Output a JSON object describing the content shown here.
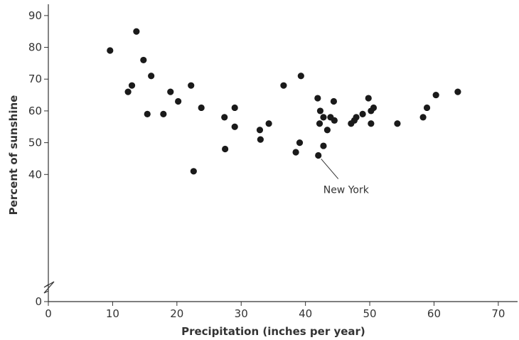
{
  "chart_data": {
    "type": "scatter",
    "xlabel": "Precipitation (inches per year)",
    "ylabel": "Percent of sunshine",
    "xlim": [
      0,
      73
    ],
    "ylim": [
      0,
      94
    ],
    "x_ticks": [
      0,
      10,
      20,
      30,
      40,
      50,
      60,
      70
    ],
    "y_ticks": [
      0,
      40,
      50,
      60,
      70,
      80,
      90
    ],
    "y_axis_break": true,
    "grid": false,
    "points": [
      {
        "x": 9.6,
        "y": 79
      },
      {
        "x": 12.4,
        "y": 66
      },
      {
        "x": 13.0,
        "y": 68
      },
      {
        "x": 13.7,
        "y": 85
      },
      {
        "x": 14.8,
        "y": 76
      },
      {
        "x": 15.4,
        "y": 59
      },
      {
        "x": 16.0,
        "y": 71
      },
      {
        "x": 17.9,
        "y": 59
      },
      {
        "x": 19.0,
        "y": 66
      },
      {
        "x": 20.2,
        "y": 63
      },
      {
        "x": 22.2,
        "y": 68
      },
      {
        "x": 22.6,
        "y": 41
      },
      {
        "x": 23.8,
        "y": 61
      },
      {
        "x": 27.4,
        "y": 58
      },
      {
        "x": 27.5,
        "y": 48
      },
      {
        "x": 29.0,
        "y": 61
      },
      {
        "x": 29.0,
        "y": 55
      },
      {
        "x": 32.9,
        "y": 54
      },
      {
        "x": 33.0,
        "y": 51
      },
      {
        "x": 34.3,
        "y": 56
      },
      {
        "x": 36.6,
        "y": 68
      },
      {
        "x": 38.5,
        "y": 47
      },
      {
        "x": 39.1,
        "y": 50
      },
      {
        "x": 39.3,
        "y": 71
      },
      {
        "x": 41.9,
        "y": 64
      },
      {
        "x": 42.0,
        "y": 46
      },
      {
        "x": 42.2,
        "y": 56
      },
      {
        "x": 42.3,
        "y": 60
      },
      {
        "x": 42.8,
        "y": 58
      },
      {
        "x": 42.8,
        "y": 49
      },
      {
        "x": 43.4,
        "y": 54
      },
      {
        "x": 43.9,
        "y": 58
      },
      {
        "x": 44.4,
        "y": 63
      },
      {
        "x": 44.5,
        "y": 57
      },
      {
        "x": 47.1,
        "y": 56
      },
      {
        "x": 47.6,
        "y": 57
      },
      {
        "x": 47.9,
        "y": 58
      },
      {
        "x": 48.9,
        "y": 59
      },
      {
        "x": 49.8,
        "y": 64
      },
      {
        "x": 50.2,
        "y": 60
      },
      {
        "x": 50.2,
        "y": 56
      },
      {
        "x": 50.6,
        "y": 61
      },
      {
        "x": 54.3,
        "y": 56
      },
      {
        "x": 58.3,
        "y": 58
      },
      {
        "x": 58.9,
        "y": 61
      },
      {
        "x": 60.3,
        "y": 65
      },
      {
        "x": 63.7,
        "y": 66
      }
    ],
    "annotations": [
      {
        "text": "New York",
        "x": 42.0,
        "y": 46
      }
    ]
  }
}
